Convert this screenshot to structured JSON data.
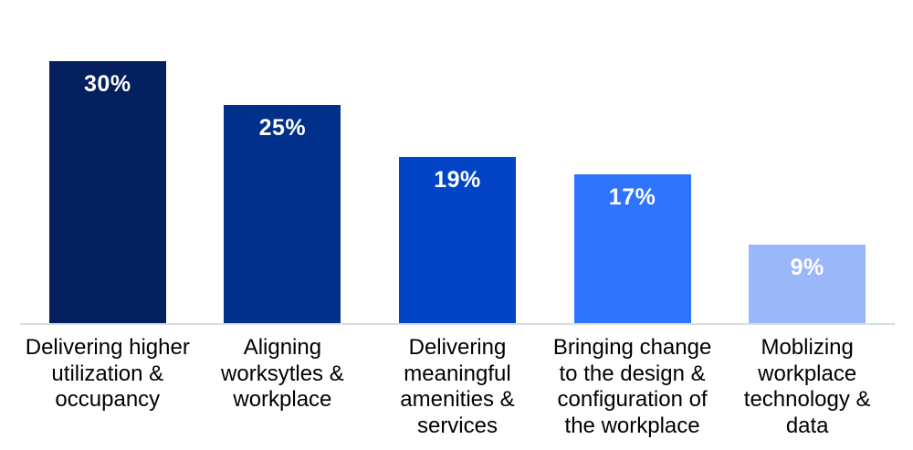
{
  "chart_data": {
    "type": "bar",
    "title": "",
    "xlabel": "",
    "ylabel": "",
    "ylim": [
      0,
      30
    ],
    "grid": false,
    "legend": false,
    "categories": [
      "Delivering higher\nutilization &\noccupancy",
      "Aligning\nworksytles &\nworkplace",
      "Delivering\nmeaningful\namenities &\nservices",
      "Bringing change\nto the design &\nconfiguration of\nthe workplace",
      "Moblizing\nworkplace\ntechnology &\ndata"
    ],
    "values": [
      30,
      25,
      19,
      17,
      9
    ],
    "value_labels": [
      "30%",
      "25%",
      "19%",
      "17%",
      "9%"
    ],
    "bar_colors": [
      "#031f5e",
      "#00308a",
      "#0344c6",
      "#2f74fc",
      "#99b7f9"
    ],
    "value_label_color": "#ffffff",
    "category_label_color": "#000000",
    "axis_line_color": "#d9dee6",
    "background_color": "#ffffff"
  }
}
